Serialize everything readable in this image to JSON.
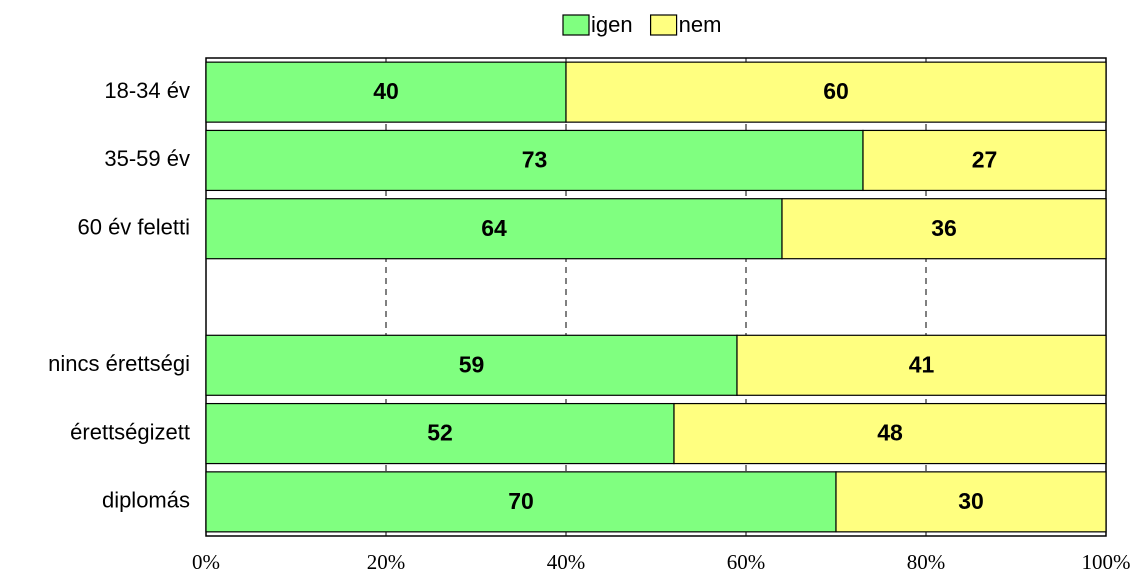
{
  "chart_data": {
    "type": "stacked_barh",
    "categories": [
      "18-34 év",
      "35-59 év",
      "60 év feletti",
      null,
      "nincs érettségi",
      "érettségizett",
      "diplomás"
    ],
    "series": [
      {
        "name": "igen",
        "color": "#80ff80",
        "values": [
          40,
          73,
          64,
          null,
          59,
          52,
          70
        ]
      },
      {
        "name": "nem",
        "color": "#ffff80",
        "values": [
          60,
          27,
          36,
          null,
          41,
          48,
          30
        ]
      }
    ],
    "xlim": [
      0,
      100
    ],
    "xticks": [
      {
        "value": 0,
        "label": "0%"
      },
      {
        "value": 20,
        "label": "20%"
      },
      {
        "value": 40,
        "label": "40%"
      },
      {
        "value": 60,
        "label": "60%"
      },
      {
        "value": 80,
        "label": "80%"
      },
      {
        "value": 100,
        "label": "100%"
      }
    ],
    "grid": true,
    "legend": "top"
  }
}
